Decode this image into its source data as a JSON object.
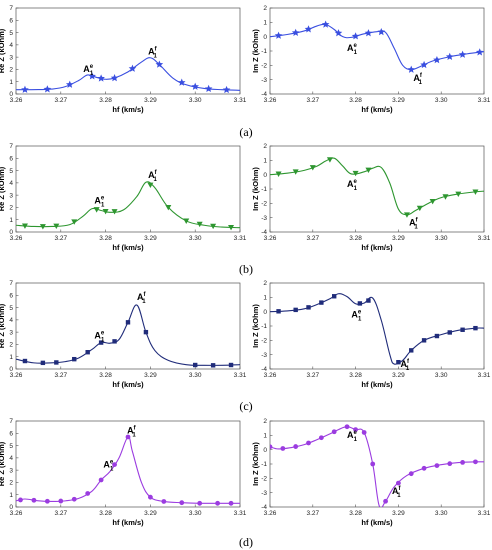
{
  "figure": {
    "row_labels": [
      "(a)",
      "(b)",
      "(c)",
      "(d)"
    ]
  },
  "chart_data": [
    {
      "type": "line",
      "panel": "a-left",
      "xlabel": "hf (km/s)",
      "ylabel": "Re Z (kOhm)",
      "xlim": [
        3.26,
        3.31
      ],
      "ylim": [
        0,
        7
      ],
      "xticks": [
        "3.26",
        "3.27",
        "3.28",
        "3.29",
        "3.30",
        "3.31"
      ],
      "yticks": [
        "0",
        "1",
        "2",
        "3",
        "4",
        "5",
        "6",
        "7"
      ],
      "color": "#3a4fe0",
      "marker": "star",
      "series": [
        {
          "x": [
            3.26,
            3.265,
            3.268,
            3.271,
            3.274,
            3.276,
            3.278,
            3.28,
            3.282,
            3.285,
            3.288,
            3.29,
            3.292,
            3.295,
            3.298,
            3.302,
            3.306,
            3.31
          ],
          "y": [
            0.35,
            0.36,
            0.4,
            0.6,
            1.1,
            1.55,
            1.35,
            1.2,
            1.3,
            1.8,
            2.6,
            2.95,
            2.4,
            1.3,
            0.75,
            0.45,
            0.35,
            0.3
          ]
        }
      ],
      "markers_x": [
        3.262,
        3.267,
        3.272,
        3.277,
        3.279,
        3.282,
        3.286,
        3.292,
        3.297,
        3.3,
        3.303,
        3.307
      ],
      "annotations": [
        {
          "base": "A",
          "sub": "1",
          "sup": "e",
          "x": 3.275,
          "y": 1.8
        },
        {
          "base": "A",
          "sub": "1",
          "sup": "f",
          "x": 3.2895,
          "y": 3.2
        }
      ]
    },
    {
      "type": "line",
      "panel": "a-right",
      "xlabel": "hf (km/s)",
      "ylabel": "Im Z (kOhm)",
      "xlim": [
        3.26,
        3.31
      ],
      "ylim": [
        -4,
        2
      ],
      "xticks": [
        "3.26",
        "3.27",
        "3.28",
        "3.29",
        "3.30",
        "3.31"
      ],
      "yticks": [
        "-4",
        "-3",
        "-2",
        "-1",
        "0",
        "1",
        "2"
      ],
      "color": "#3a4fe0",
      "marker": "star",
      "series": [
        {
          "x": [
            3.26,
            3.264,
            3.268,
            3.271,
            3.273,
            3.275,
            3.277,
            3.279,
            3.282,
            3.285,
            3.287,
            3.289,
            3.291,
            3.293,
            3.295,
            3.298,
            3.302,
            3.306,
            3.31
          ],
          "y": [
            0.0,
            0.15,
            0.4,
            0.75,
            0.85,
            0.5,
            0.0,
            -0.05,
            0.2,
            0.35,
            0.3,
            -0.8,
            -2.0,
            -2.3,
            -2.1,
            -1.7,
            -1.4,
            -1.2,
            -1.05
          ]
        }
      ],
      "markers_x": [
        3.262,
        3.266,
        3.269,
        3.273,
        3.276,
        3.28,
        3.283,
        3.286,
        3.293,
        3.296,
        3.299,
        3.302,
        3.305,
        3.309
      ],
      "annotations": [
        {
          "base": "A",
          "sub": "1",
          "sup": "e",
          "x": 3.278,
          "y": -1.0
        },
        {
          "base": "A",
          "sub": "1",
          "sup": "f",
          "x": 3.2935,
          "y": -3.1
        }
      ]
    },
    {
      "type": "line",
      "panel": "b-left",
      "xlabel": "hf (km/s)",
      "ylabel": "Re Z (kOhm)",
      "xlim": [
        3.26,
        3.31
      ],
      "ylim": [
        0,
        7
      ],
      "xticks": [
        "3.26",
        "3.27",
        "3.28",
        "3.29",
        "3.30",
        "3.31"
      ],
      "yticks": [
        "0",
        "1",
        "2",
        "3",
        "4",
        "5",
        "6",
        "7"
      ],
      "color": "#2e9630",
      "marker": "triangle",
      "series": [
        {
          "x": [
            3.26,
            3.264,
            3.268,
            3.272,
            3.275,
            3.277,
            3.279,
            3.281,
            3.284,
            3.287,
            3.289,
            3.291,
            3.294,
            3.298,
            3.302,
            3.306,
            3.31
          ],
          "y": [
            0.55,
            0.45,
            0.45,
            0.6,
            1.3,
            1.9,
            1.75,
            1.6,
            1.8,
            2.9,
            4.05,
            3.6,
            2.0,
            0.9,
            0.55,
            0.4,
            0.35
          ]
        }
      ],
      "markers_x": [
        3.262,
        3.266,
        3.269,
        3.273,
        3.278,
        3.28,
        3.282,
        3.29,
        3.294,
        3.298,
        3.301,
        3.304,
        3.308
      ],
      "annotations": [
        {
          "base": "A",
          "sub": "1",
          "sup": "e",
          "x": 3.2775,
          "y": 2.3
        },
        {
          "base": "A",
          "sub": "1",
          "sup": "f",
          "x": 3.2895,
          "y": 4.4
        }
      ]
    },
    {
      "type": "line",
      "panel": "b-right",
      "xlabel": "hf (km/s)",
      "ylabel": "Im Z (kOhm)",
      "xlim": [
        3.26,
        3.31
      ],
      "ylim": [
        -4,
        2
      ],
      "xticks": [
        "3.26",
        "3.27",
        "3.28",
        "3.29",
        "3.30",
        "3.31"
      ],
      "yticks": [
        "-4",
        "-3",
        "-2",
        "-1",
        "0",
        "1",
        "2"
      ],
      "color": "#2e9630",
      "marker": "triangle",
      "series": [
        {
          "x": [
            3.26,
            3.264,
            3.268,
            3.271,
            3.273,
            3.275,
            3.277,
            3.279,
            3.282,
            3.284,
            3.286,
            3.288,
            3.29,
            3.292,
            3.294,
            3.297,
            3.3,
            3.304,
            3.308,
            3.31
          ],
          "y": [
            0.0,
            0.1,
            0.3,
            0.6,
            0.95,
            1.15,
            0.6,
            0.05,
            0.2,
            0.45,
            0.5,
            -0.6,
            -2.4,
            -2.8,
            -2.5,
            -2.0,
            -1.6,
            -1.35,
            -1.2,
            -1.15
          ]
        }
      ],
      "markers_x": [
        3.262,
        3.266,
        3.27,
        3.274,
        3.28,
        3.283,
        3.292,
        3.295,
        3.298,
        3.301,
        3.304,
        3.308
      ],
      "annotations": [
        {
          "base": "A",
          "sub": "1",
          "sup": "e",
          "x": 3.278,
          "y": -0.85
        },
        {
          "base": "A",
          "sub": "1",
          "sup": "f",
          "x": 3.2925,
          "y": -3.55
        }
      ]
    },
    {
      "type": "line",
      "panel": "c-left",
      "xlabel": "hf (km/s)",
      "ylabel": "Re Z (kOhm)",
      "xlim": [
        3.26,
        3.31
      ],
      "ylim": [
        0,
        7
      ],
      "xticks": [
        "3.26",
        "3.27",
        "3.28",
        "3.29",
        "3.30",
        "3.31"
      ],
      "yticks": [
        "0",
        "1",
        "2",
        "3",
        "4",
        "5",
        "6",
        "7"
      ],
      "color": "#202c7a",
      "marker": "square",
      "series": [
        {
          "x": [
            3.26,
            3.264,
            3.268,
            3.271,
            3.274,
            3.277,
            3.279,
            3.281,
            3.283,
            3.285,
            3.287,
            3.289,
            3.291,
            3.294,
            3.298,
            3.302,
            3.306,
            3.31
          ],
          "y": [
            0.8,
            0.5,
            0.5,
            0.6,
            0.9,
            1.6,
            2.15,
            2.1,
            2.4,
            3.8,
            5.2,
            3.0,
            1.5,
            0.7,
            0.35,
            0.3,
            0.3,
            0.35
          ]
        }
      ],
      "markers_x": [
        3.262,
        3.266,
        3.269,
        3.273,
        3.276,
        3.279,
        3.282,
        3.285,
        3.289,
        3.3,
        3.304,
        3.308
      ],
      "annotations": [
        {
          "base": "A",
          "sub": "1",
          "sup": "e",
          "x": 3.2775,
          "y": 2.5
        },
        {
          "base": "A",
          "sub": "1",
          "sup": "f",
          "x": 3.287,
          "y": 5.6
        }
      ]
    },
    {
      "type": "line",
      "panel": "c-right",
      "xlabel": "hf (km/s)",
      "ylabel": "Im Z (kOhm)",
      "xlim": [
        3.26,
        3.31
      ],
      "ylim": [
        -4,
        2
      ],
      "xticks": [
        "3.26",
        "3.27",
        "3.28",
        "3.29",
        "3.30",
        "3.31"
      ],
      "yticks": [
        "-4",
        "-3",
        "-2",
        "-1",
        "0",
        "1",
        "2"
      ],
      "color": "#202c7a",
      "marker": "square",
      "series": [
        {
          "x": [
            3.26,
            3.264,
            3.268,
            3.271,
            3.274,
            3.276,
            3.278,
            3.28,
            3.282,
            3.284,
            3.286,
            3.288,
            3.289,
            3.291,
            3.293,
            3.296,
            3.3,
            3.304,
            3.308,
            3.31
          ],
          "y": [
            0.0,
            0.05,
            0.2,
            0.5,
            0.9,
            1.25,
            1.05,
            0.55,
            0.6,
            0.95,
            -0.6,
            -3.0,
            -3.65,
            -3.4,
            -2.7,
            -2.0,
            -1.6,
            -1.3,
            -1.15,
            -1.15
          ]
        }
      ],
      "markers_x": [
        3.262,
        3.266,
        3.269,
        3.272,
        3.275,
        3.281,
        3.283,
        3.29,
        3.293,
        3.296,
        3.299,
        3.302,
        3.305,
        3.308
      ],
      "annotations": [
        {
          "base": "A",
          "sub": "1",
          "sup": "e",
          "x": 3.279,
          "y": -0.4
        },
        {
          "base": "A",
          "sub": "1",
          "sup": "f",
          "x": 3.2905,
          "y": -3.85
        }
      ]
    },
    {
      "type": "line",
      "panel": "d-left",
      "xlabel": "hf (km/s)",
      "ylabel": "Re Z (kOhm)",
      "xlim": [
        3.26,
        3.31
      ],
      "ylim": [
        0,
        7
      ],
      "xticks": [
        "3.26",
        "3.27",
        "3.28",
        "3.29",
        "3.30",
        "3.31"
      ],
      "yticks": [
        "0",
        "1",
        "2",
        "3",
        "4",
        "5",
        "6",
        "7"
      ],
      "color": "#9b3ce0",
      "marker": "circle",
      "series": [
        {
          "x": [
            3.26,
            3.262,
            3.265,
            3.268,
            3.271,
            3.274,
            3.277,
            3.279,
            3.281,
            3.283,
            3.285,
            3.286,
            3.288,
            3.29,
            3.293,
            3.297,
            3.301,
            3.305,
            3.31
          ],
          "y": [
            0.5,
            0.65,
            0.5,
            0.45,
            0.5,
            0.7,
            1.3,
            2.2,
            2.9,
            4.0,
            5.7,
            4.5,
            2.0,
            0.8,
            0.45,
            0.35,
            0.3,
            0.3,
            0.3
          ]
        }
      ],
      "markers_x": [
        3.261,
        3.264,
        3.267,
        3.27,
        3.273,
        3.276,
        3.279,
        3.282,
        3.285,
        3.29,
        3.293,
        3.297,
        3.301,
        3.305,
        3.308
      ],
      "annotations": [
        {
          "base": "A",
          "sub": "1",
          "sup": "e",
          "x": 3.2795,
          "y": 3.2
        },
        {
          "base": "A",
          "sub": "1",
          "sup": "f",
          "x": 3.2848,
          "y": 6.0
        }
      ]
    },
    {
      "type": "line",
      "panel": "d-right",
      "xlabel": "hf (km/s)",
      "ylabel": "Im Z (kOhm)",
      "xlim": [
        3.26,
        3.31
      ],
      "ylim": [
        -4,
        2
      ],
      "xticks": [
        "3.26",
        "3.27",
        "3.28",
        "3.29",
        "3.30",
        "3.31"
      ],
      "yticks": [
        "-4",
        "-3",
        "-2",
        "-1",
        "0",
        "1",
        "2"
      ],
      "color": "#9b3ce0",
      "marker": "circle",
      "series": [
        {
          "x": [
            3.26,
            3.262,
            3.265,
            3.268,
            3.271,
            3.274,
            3.276,
            3.278,
            3.28,
            3.282,
            3.284,
            3.2855,
            3.287,
            3.289,
            3.292,
            3.296,
            3.3,
            3.304,
            3.308,
            3.31
          ],
          "y": [
            0.2,
            0.05,
            0.15,
            0.35,
            0.7,
            1.1,
            1.4,
            1.6,
            1.4,
            1.2,
            -1.0,
            -3.9,
            -3.6,
            -2.6,
            -1.8,
            -1.3,
            -1.05,
            -0.9,
            -0.85,
            -0.85
          ]
        }
      ],
      "markers_x": [
        3.26,
        3.263,
        3.266,
        3.269,
        3.272,
        3.275,
        3.278,
        3.28,
        3.282,
        3.284,
        3.287,
        3.29,
        3.293,
        3.296,
        3.299,
        3.302,
        3.305,
        3.308
      ],
      "annotations": [
        {
          "base": "A",
          "sub": "1",
          "sup": "e",
          "x": 3.278,
          "y": 0.8
        },
        {
          "base": "A",
          "sub": "1",
          "sup": "f",
          "x": 3.2885,
          "y": -3.1
        }
      ]
    }
  ]
}
